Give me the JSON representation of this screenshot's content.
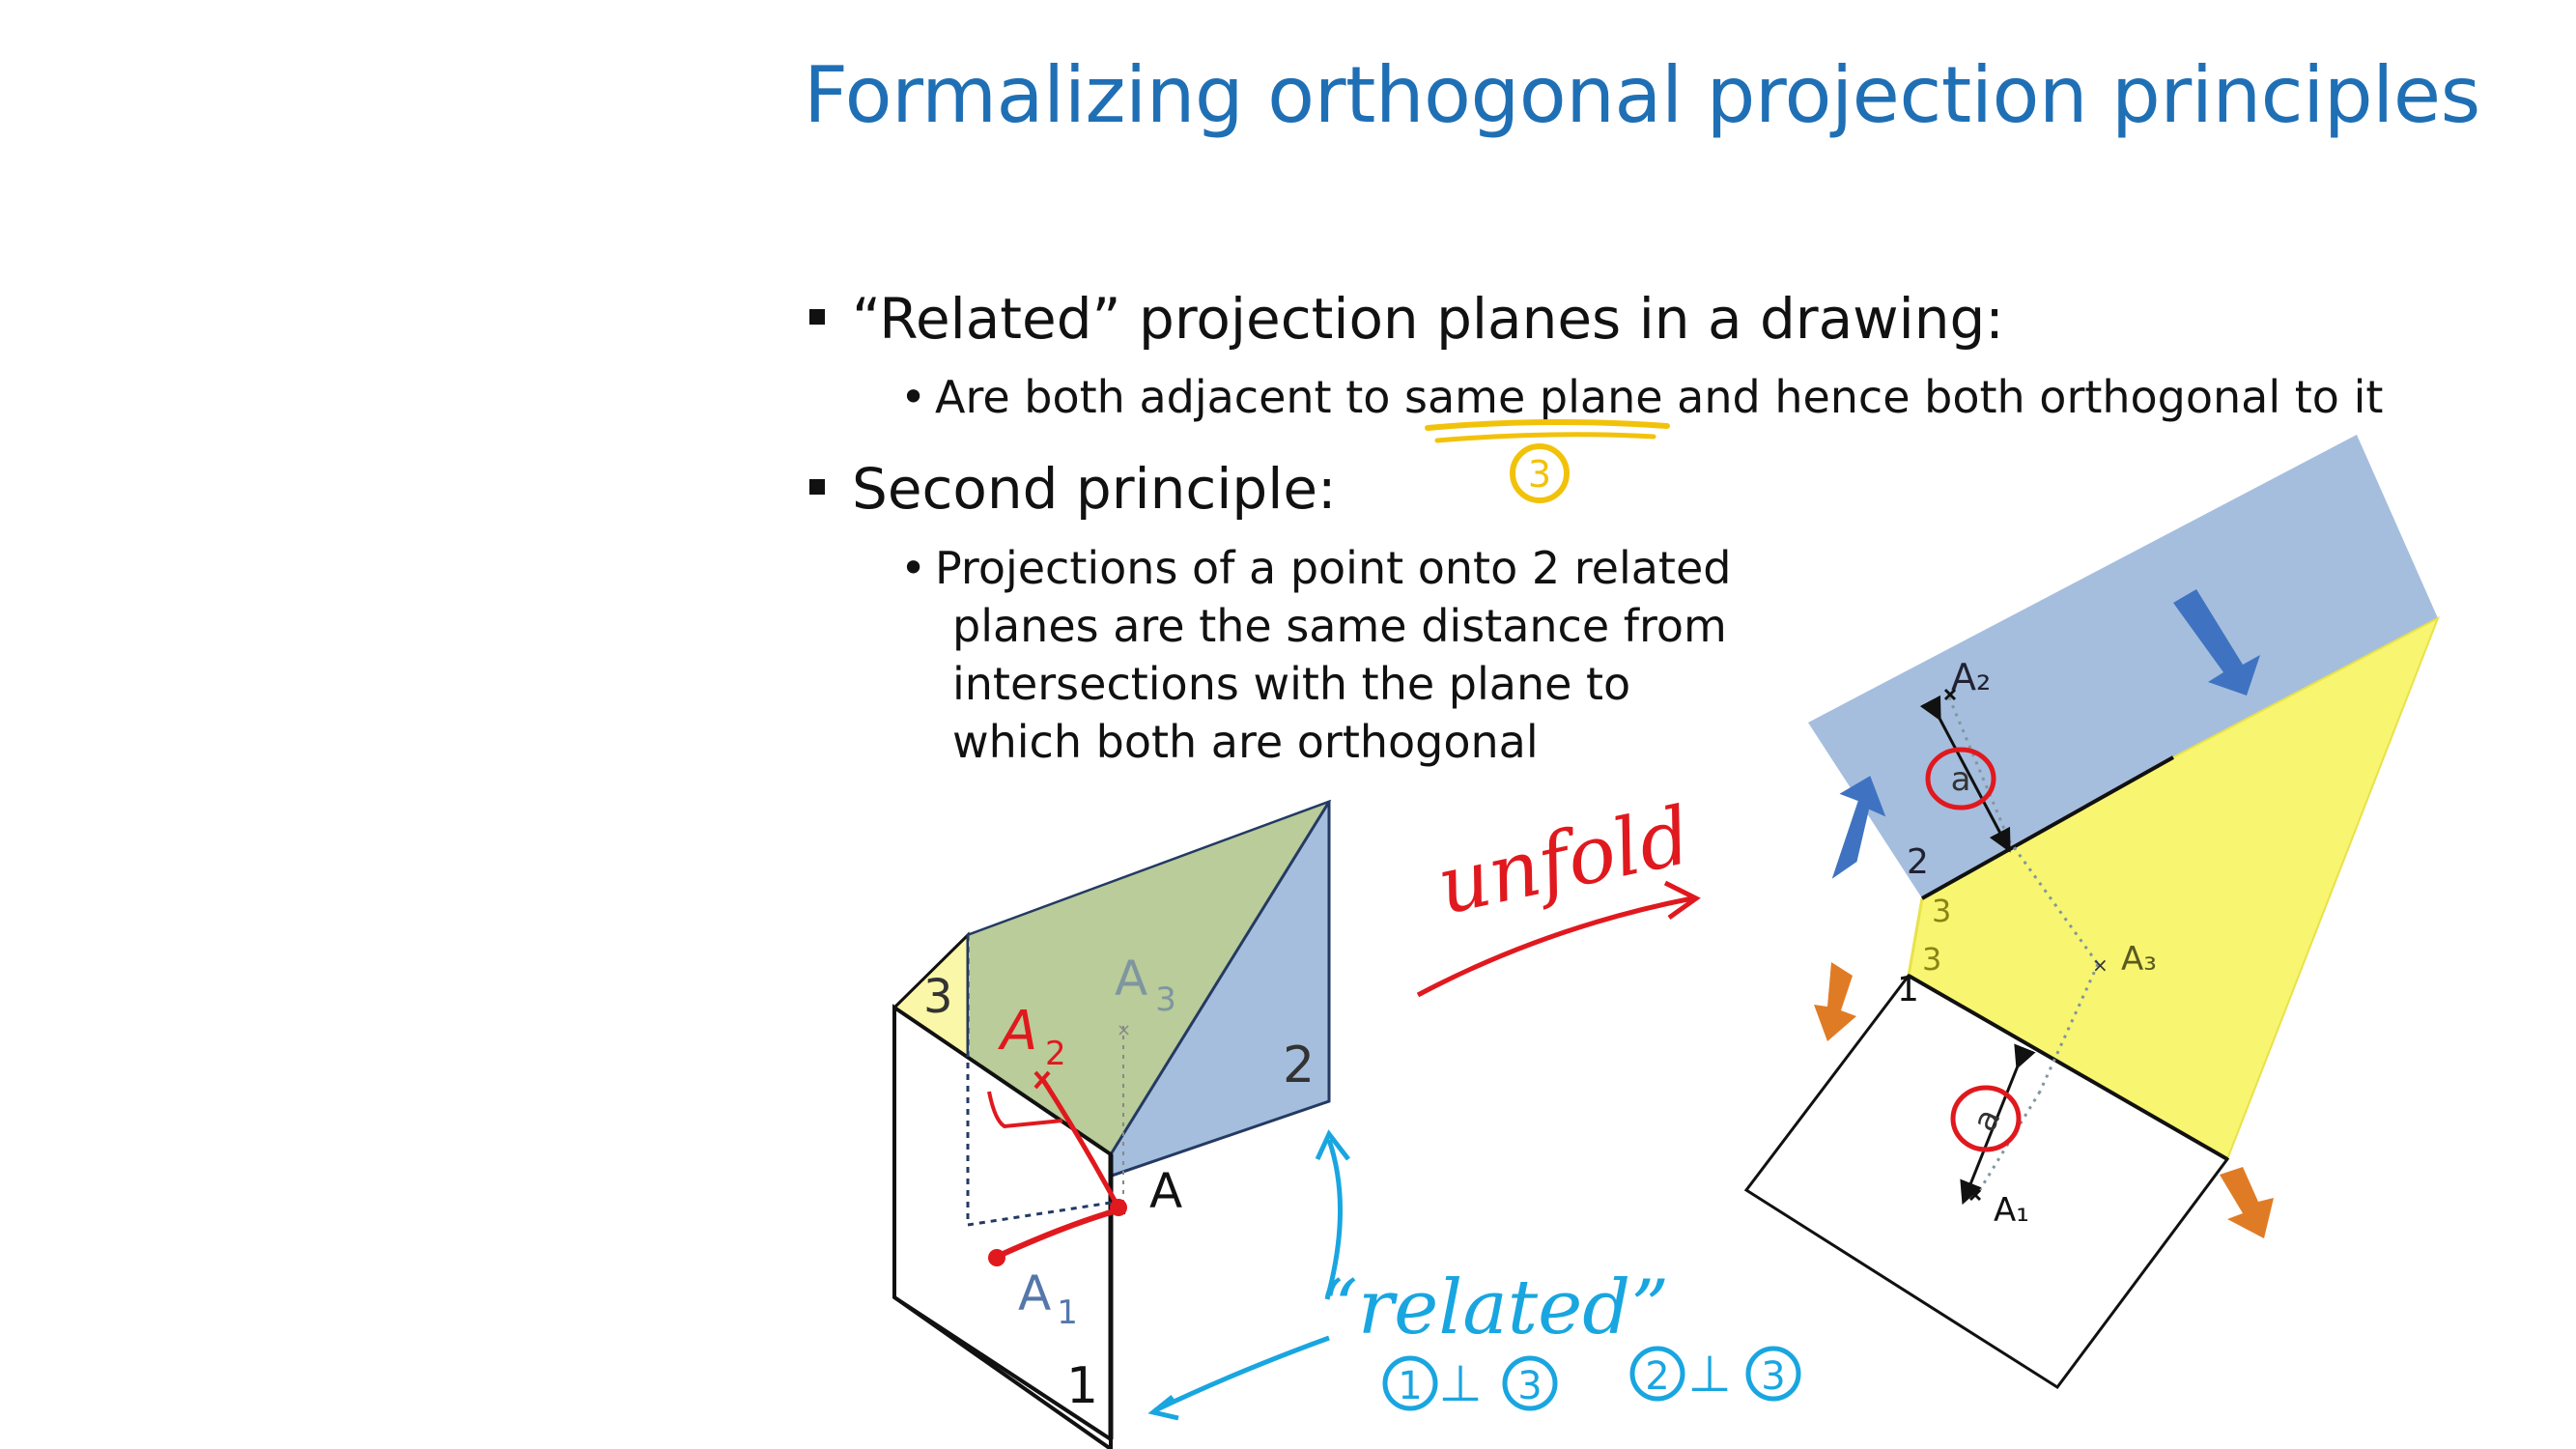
{
  "slide": {
    "title": "Formalizing orthogonal projection principles",
    "bullet1": {
      "text": "“Related” projection planes in a drawing:",
      "sub": [
        "Are both adjacent to ",
        "same plane",
        " and hence both orthogonal to it"
      ]
    },
    "bullet2": {
      "text": "Second principle:",
      "sub_lines": [
        "Projections of a point onto 2 related",
        "planes are the same distance from",
        "intersections with the plane to",
        "which both are orthogonal"
      ]
    }
  },
  "left_figure": {
    "plane_labels": [
      "3",
      "2",
      "1"
    ],
    "point_labels": [
      "A",
      "1",
      "3"
    ],
    "point_names": [
      "A",
      "A",
      "A"
    ]
  },
  "right_figure": {
    "labels": [
      "A₂",
      "a",
      "2",
      "3",
      "3",
      "A₃",
      "1",
      "a",
      "A₁"
    ]
  },
  "annotations": {
    "circled_3": "3",
    "unfold": "unfold",
    "A2_handwritten": "A",
    "A2_sub": "2",
    "related": "“related”",
    "rel1": [
      "1",
      "⊥",
      "3"
    ],
    "rel2": [
      "2",
      "⊥",
      "3"
    ]
  },
  "colors": {
    "title": "#1f6fb5",
    "plane_blue": "#a5bedd",
    "plane_green": "#b9cc99",
    "plane_yellow": "#f8f570",
    "ink_red": "#e0191e",
    "ink_blue": "#19a6e0",
    "ink_yellow": "#f2c20a",
    "arrow_blue": "#3f73c1",
    "arrow_orange": "#e07b25"
  }
}
